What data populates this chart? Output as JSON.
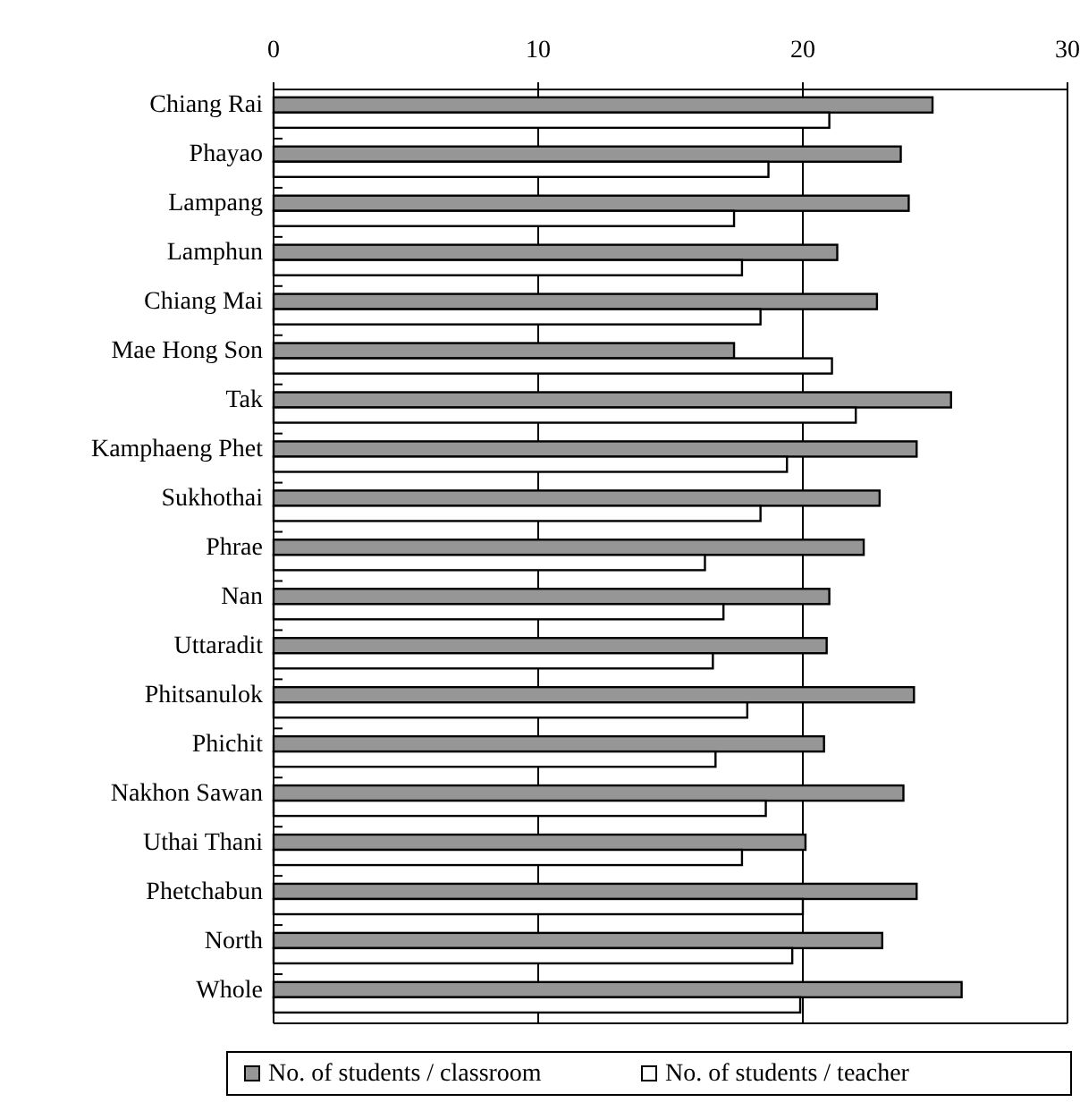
{
  "chart_data": {
    "type": "bar",
    "orientation": "horizontal",
    "categories": [
      "Chiang Rai",
      "Phayao",
      "Lampang",
      "Lamphun",
      "Chiang Mai",
      "Mae Hong Son",
      "Tak",
      "Kamphaeng Phet",
      "Sukhothai",
      "Phrae",
      "Nan",
      "Uttaradit",
      "Phitsanulok",
      "Phichit",
      "Nakhon Sawan",
      "Uthai Thani",
      "Phetchabun",
      "North",
      "Whole"
    ],
    "series": [
      {
        "name": "No. of students / classroom",
        "color": "#969696",
        "values": [
          24.9,
          23.7,
          24.0,
          21.3,
          22.8,
          17.4,
          25.6,
          24.3,
          22.9,
          22.3,
          21.0,
          20.9,
          24.2,
          20.8,
          23.8,
          20.1,
          24.3,
          23.0,
          26.0
        ]
      },
      {
        "name": "No. of students / teacher",
        "color": "#ffffff",
        "values": [
          21.0,
          18.7,
          17.4,
          17.7,
          18.4,
          21.1,
          22.0,
          19.4,
          18.4,
          16.3,
          17.0,
          16.6,
          17.9,
          16.7,
          18.6,
          17.7,
          20.0,
          19.6,
          19.9
        ]
      }
    ],
    "xlim": [
      0,
      30
    ],
    "xticks": [
      0,
      10,
      20,
      30
    ],
    "grid": "x",
    "legend": "bottom"
  }
}
